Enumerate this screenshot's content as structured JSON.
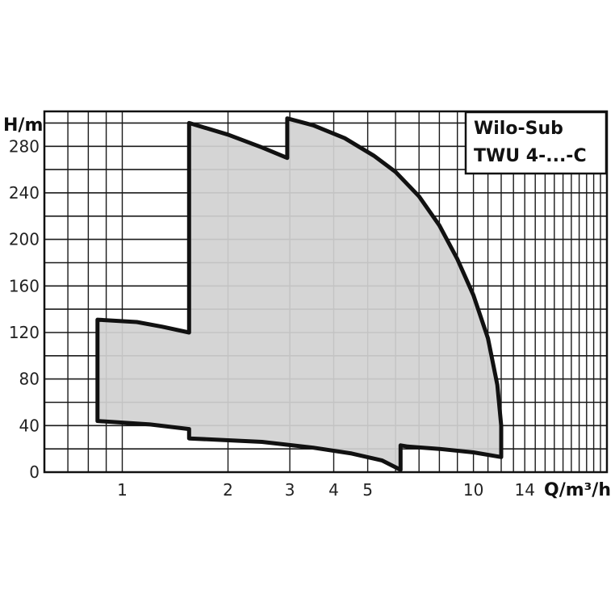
{
  "chart_data": {
    "type": "area",
    "x_scale": "log",
    "xlim": [
      0.6,
      24
    ],
    "ylim": [
      0,
      310
    ],
    "grid": true,
    "ylabel": "H/m",
    "xlabel": "Q/m³/h",
    "legend_lines": [
      "Wilo-Sub",
      "TWU 4-...-C"
    ],
    "legend_position": "top-right",
    "x_ticks": [
      {
        "value": 1,
        "label": "1"
      },
      {
        "value": 2,
        "label": "2"
      },
      {
        "value": 3,
        "label": "3"
      },
      {
        "value": 4,
        "label": "4"
      },
      {
        "value": 5,
        "label": "5"
      },
      {
        "value": 10,
        "label": "10"
      },
      {
        "value": 14,
        "label": "14"
      }
    ],
    "y_ticks": [
      {
        "value": 0,
        "label": "0"
      },
      {
        "value": 40,
        "label": "40"
      },
      {
        "value": 80,
        "label": "80"
      },
      {
        "value": 120,
        "label": "120"
      },
      {
        "value": 160,
        "label": "160"
      },
      {
        "value": 200,
        "label": "200"
      },
      {
        "value": 240,
        "label": "240"
      },
      {
        "value": 280,
        "label": "280"
      }
    ],
    "fill_color": "#d1d1d1",
    "outline_color": "#111111",
    "envelope": [
      [
        0.85,
        44
      ],
      [
        0.85,
        131
      ],
      [
        1.1,
        129
      ],
      [
        1.3,
        125
      ],
      [
        1.55,
        120
      ],
      [
        1.55,
        300
      ],
      [
        2.0,
        290
      ],
      [
        2.5,
        279
      ],
      [
        2.95,
        270
      ],
      [
        2.95,
        304
      ],
      [
        3.5,
        298
      ],
      [
        4.3,
        287
      ],
      [
        5.2,
        272
      ],
      [
        6.0,
        258
      ],
      [
        7.0,
        237
      ],
      [
        8.0,
        212
      ],
      [
        9.0,
        183
      ],
      [
        10.0,
        152
      ],
      [
        11.0,
        115
      ],
      [
        11.7,
        75
      ],
      [
        12.0,
        40
      ],
      [
        12.0,
        13
      ],
      [
        10.0,
        17
      ],
      [
        8.0,
        20
      ],
      [
        6.5,
        22
      ],
      [
        6.2,
        23
      ],
      [
        6.2,
        2
      ],
      [
        5.5,
        10
      ],
      [
        4.5,
        16
      ],
      [
        3.5,
        21
      ],
      [
        2.5,
        26
      ],
      [
        1.55,
        29
      ],
      [
        1.55,
        37
      ],
      [
        1.2,
        41
      ],
      [
        0.85,
        44
      ]
    ]
  }
}
